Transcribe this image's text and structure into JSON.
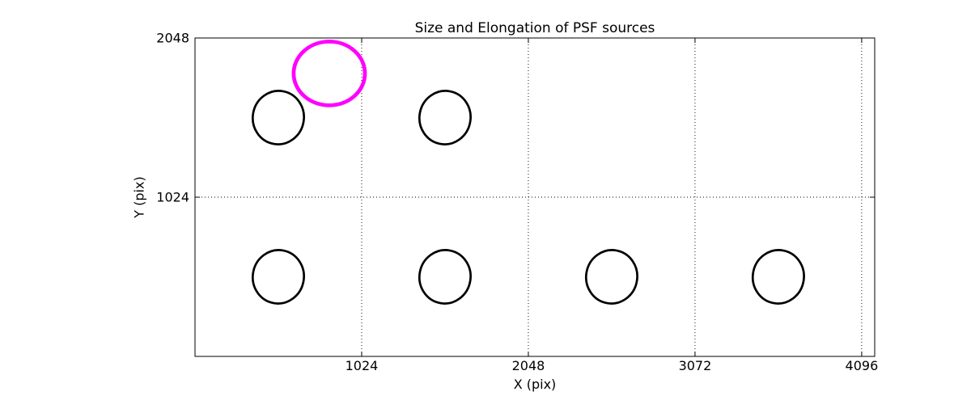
{
  "figure": {
    "background": "#FFFFFF",
    "axis_color": "#000000",
    "text_color": "#000000"
  },
  "chart_data": {
    "type": "scatter",
    "title": "Size and Elongation of PSF sources",
    "xlabel": "X (pix)",
    "ylabel": "Y (pix)",
    "xlim": [
      0,
      4176
    ],
    "ylim": [
      0,
      2048
    ],
    "xticks": [
      1024,
      2048,
      3072,
      4096
    ],
    "yticks": [
      1024,
      2048
    ],
    "grid": true,
    "grid_linestyle": "dotted",
    "grid_color": "#000000",
    "legend": "none",
    "highlight_color": "#FF00FF",
    "ellipses": [
      {
        "name": "psf-source-ellipse-1",
        "x": 512,
        "y": 1536,
        "rx": 157,
        "ry": 172,
        "tilt_deg": 10,
        "color": "#000000",
        "line_width": 2.7
      },
      {
        "name": "psf-source-ellipse-2",
        "x": 1536,
        "y": 1536,
        "rx": 157,
        "ry": 172,
        "tilt_deg": 10,
        "color": "#000000",
        "line_width": 2.7
      },
      {
        "name": "psf-source-ellipse-3",
        "x": 512,
        "y": 512,
        "rx": 157,
        "ry": 172,
        "tilt_deg": 10,
        "color": "#000000",
        "line_width": 2.7
      },
      {
        "name": "psf-source-ellipse-4",
        "x": 1536,
        "y": 512,
        "rx": 157,
        "ry": 172,
        "tilt_deg": 10,
        "color": "#000000",
        "line_width": 2.7
      },
      {
        "name": "psf-source-ellipse-5",
        "x": 2560,
        "y": 512,
        "rx": 157,
        "ry": 172,
        "tilt_deg": 10,
        "color": "#000000",
        "line_width": 2.7
      },
      {
        "name": "psf-source-ellipse-6",
        "x": 3584,
        "y": 512,
        "rx": 157,
        "ry": 172,
        "tilt_deg": 10,
        "color": "#000000",
        "line_width": 2.7
      },
      {
        "name": "psf-source-ellipse-highlighted",
        "x": 825,
        "y": 1820,
        "rx": 219,
        "ry": 205,
        "tilt_deg": 0,
        "color": "#FF00FF",
        "line_width": 4.7
      }
    ]
  }
}
